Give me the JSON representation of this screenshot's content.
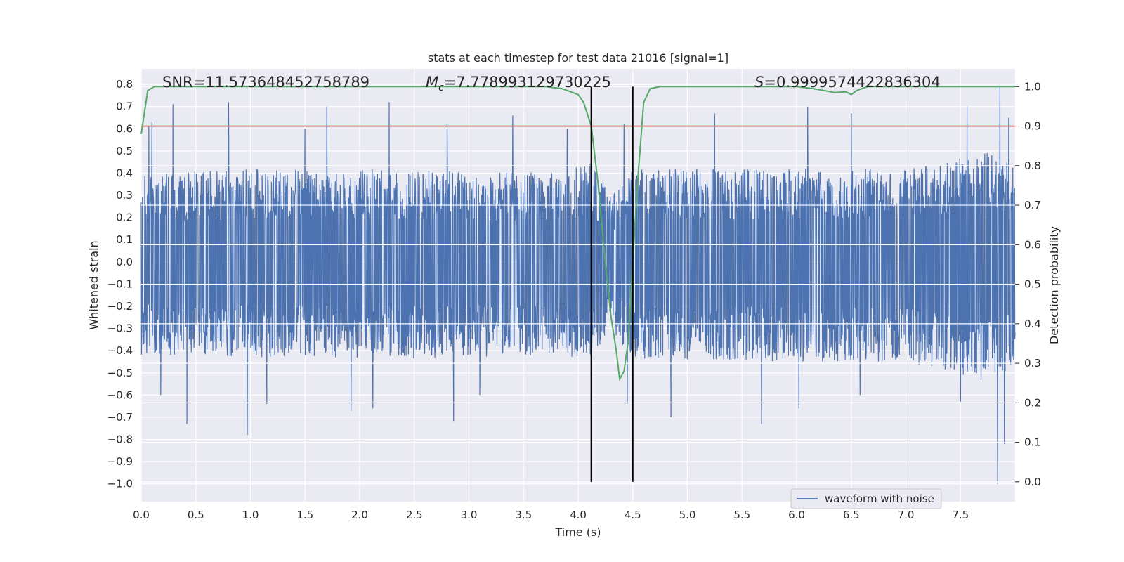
{
  "chart_data": {
    "type": "line",
    "title": "stats at each timestep for test data 21016 [signal=1]",
    "xlabel": "Time (s)",
    "ylabel_left": "Whitened strain",
    "ylabel_right": "Detection probability",
    "xlim": [
      0.0,
      8.0
    ],
    "ylim_left": [
      -1.08,
      0.87
    ],
    "ylim_right": [
      -0.05,
      1.045
    ],
    "xticks": [
      "0.0",
      "0.5",
      "1.0",
      "1.5",
      "2.0",
      "2.5",
      "3.0",
      "3.5",
      "4.0",
      "4.5",
      "5.0",
      "5.5",
      "6.0",
      "6.5",
      "7.0",
      "7.5"
    ],
    "xtick_values": [
      0,
      0.5,
      1,
      1.5,
      2,
      2.5,
      3,
      3.5,
      4,
      4.5,
      5,
      5.5,
      6,
      6.5,
      7,
      7.5
    ],
    "yticks_left": [
      "0.8",
      "0.7",
      "0.6",
      "0.5",
      "0.4",
      "0.3",
      "0.2",
      "0.1",
      "0.0",
      "−0.1",
      "−0.2",
      "−0.3",
      "−0.4",
      "−0.5",
      "−0.6",
      "−0.7",
      "−0.8",
      "−0.9",
      "−1.0"
    ],
    "ytick_values_left": [
      0.8,
      0.7,
      0.6,
      0.5,
      0.4,
      0.3,
      0.2,
      0.1,
      0.0,
      -0.1,
      -0.2,
      -0.3,
      -0.4,
      -0.5,
      -0.6,
      -0.7,
      -0.8,
      -0.9,
      -1.0
    ],
    "yticks_right": [
      "1.0",
      "0.9",
      "0.8",
      "0.7",
      "0.6",
      "0.5",
      "0.4",
      "0.3",
      "0.2",
      "0.1",
      "0.0"
    ],
    "ytick_values_right": [
      1.0,
      0.9,
      0.8,
      0.7,
      0.6,
      0.5,
      0.4,
      0.3,
      0.2,
      0.1,
      0.0
    ],
    "annotations": {
      "snr": "SNR=11.573648452758789",
      "mc_symbol": "M",
      "mc_subscript": "c",
      "mc_value": "=7.778993129730225",
      "s_symbol": "S",
      "s_value": "=0.9999574422836304"
    },
    "threshold": {
      "value": 0.9,
      "axis": "right",
      "color": "#c44e52"
    },
    "vlines": [
      4.12,
      4.5
    ],
    "waveform": {
      "name": "waveform with noise",
      "color": "#4c72b0",
      "envelope_upper": [
        [
          0.0,
          0.4
        ],
        [
          1.0,
          0.42
        ],
        [
          2.0,
          0.42
        ],
        [
          3.0,
          0.41
        ],
        [
          3.8,
          0.4
        ],
        [
          4.12,
          0.45
        ],
        [
          4.3,
          0.3
        ],
        [
          4.5,
          0.42
        ],
        [
          5.0,
          0.42
        ],
        [
          6.0,
          0.42
        ],
        [
          7.0,
          0.42
        ],
        [
          7.8,
          0.5
        ],
        [
          8.0,
          0.45
        ]
      ],
      "envelope_lower": [
        [
          0.0,
          -0.42
        ],
        [
          1.0,
          -0.43
        ],
        [
          2.0,
          -0.44
        ],
        [
          3.0,
          -0.43
        ],
        [
          3.8,
          -0.42
        ],
        [
          4.12,
          -0.45
        ],
        [
          4.3,
          -0.3
        ],
        [
          4.5,
          -0.44
        ],
        [
          5.0,
          -0.44
        ],
        [
          6.0,
          -0.45
        ],
        [
          7.0,
          -0.45
        ],
        [
          7.8,
          -0.55
        ],
        [
          8.0,
          -0.5
        ]
      ],
      "peaks": [
        [
          0.07,
          0.61
        ],
        [
          0.1,
          0.63
        ],
        [
          0.29,
          0.71
        ],
        [
          0.8,
          0.72
        ],
        [
          1.5,
          0.6
        ],
        [
          1.7,
          0.7
        ],
        [
          2.27,
          0.72
        ],
        [
          2.8,
          0.62
        ],
        [
          3.4,
          0.66
        ],
        [
          3.9,
          0.6
        ],
        [
          4.42,
          0.62
        ],
        [
          5.25,
          0.67
        ],
        [
          6.1,
          0.7
        ],
        [
          6.5,
          0.67
        ],
        [
          7.56,
          0.7
        ],
        [
          7.86,
          0.79
        ],
        [
          7.94,
          0.65
        ]
      ],
      "troughs": [
        [
          0.18,
          -0.6
        ],
        [
          0.42,
          -0.73
        ],
        [
          0.97,
          -0.78
        ],
        [
          1.15,
          -0.64
        ],
        [
          1.92,
          -0.67
        ],
        [
          2.12,
          -0.66
        ],
        [
          2.86,
          -0.72
        ],
        [
          3.1,
          -0.6
        ],
        [
          4.45,
          -0.64
        ],
        [
          4.85,
          -0.7
        ],
        [
          5.68,
          -0.73
        ],
        [
          6.02,
          -0.66
        ],
        [
          6.58,
          -0.6
        ],
        [
          7.5,
          -0.63
        ],
        [
          7.84,
          -1.0
        ],
        [
          7.9,
          -0.82
        ]
      ]
    },
    "detection_probability": {
      "name": "detection probability",
      "color": "#55a868",
      "points": [
        [
          0.0,
          0.88
        ],
        [
          0.06,
          0.99
        ],
        [
          0.12,
          1.0
        ],
        [
          1.0,
          1.0
        ],
        [
          2.0,
          1.0
        ],
        [
          3.0,
          1.0
        ],
        [
          3.7,
          1.0
        ],
        [
          3.85,
          0.995
        ],
        [
          4.0,
          0.98
        ],
        [
          4.05,
          0.96
        ],
        [
          4.12,
          0.9
        ],
        [
          4.18,
          0.76
        ],
        [
          4.25,
          0.55
        ],
        [
          4.3,
          0.42
        ],
        [
          4.35,
          0.33
        ],
        [
          4.38,
          0.26
        ],
        [
          4.42,
          0.28
        ],
        [
          4.46,
          0.36
        ],
        [
          4.5,
          0.56
        ],
        [
          4.55,
          0.78
        ],
        [
          4.6,
          0.96
        ],
        [
          4.66,
          0.995
        ],
        [
          4.75,
          1.0
        ],
        [
          5.5,
          1.0
        ],
        [
          6.0,
          1.0
        ],
        [
          6.15,
          0.995
        ],
        [
          6.25,
          0.99
        ],
        [
          6.35,
          0.985
        ],
        [
          6.45,
          0.987
        ],
        [
          6.5,
          0.98
        ],
        [
          6.55,
          0.99
        ],
        [
          6.65,
          1.0
        ],
        [
          7.0,
          1.0
        ],
        [
          7.5,
          1.0
        ],
        [
          8.0,
          1.0
        ]
      ]
    },
    "legend": {
      "label": "waveform with noise",
      "position": "lower-right"
    }
  }
}
